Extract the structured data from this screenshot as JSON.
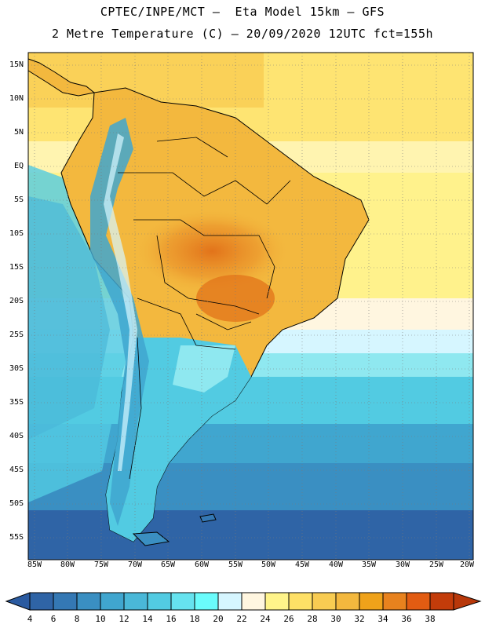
{
  "header": {
    "line1": "CPTEC/INPE/MCT –  Eta Model 15km – GFS",
    "line2": "2 Metre Temperature (C) – 20/09/2020 12UTC fct=155h"
  },
  "axes": {
    "lat_labels": [
      "15N",
      "10N",
      "5N",
      "EQ",
      "5S",
      "10S",
      "15S",
      "20S",
      "25S",
      "30S",
      "35S",
      "40S",
      "45S",
      "50S",
      "55S"
    ],
    "lon_labels": [
      "85W",
      "80W",
      "75W",
      "70W",
      "65W",
      "60W",
      "55W",
      "50W",
      "45W",
      "40W",
      "35W",
      "30W",
      "25W",
      "20W"
    ]
  },
  "legend": {
    "values": [
      "4",
      "6",
      "8",
      "10",
      "12",
      "14",
      "16",
      "18",
      "20",
      "22",
      "24",
      "26",
      "28",
      "30",
      "32",
      "34",
      "36",
      "38"
    ],
    "colors": [
      "#2f64a6",
      "#3478b4",
      "#3a8fc2",
      "#40a6cf",
      "#4ab8d8",
      "#52cbe2",
      "#66e3ef",
      "#6afcfc",
      "#d6f6ff",
      "#fff6e0",
      "#fff48a",
      "#fee066",
      "#f8cc52",
      "#f3b83e",
      "#efa21a",
      "#e8821e",
      "#e25c12",
      "#c33c0a"
    ]
  }
}
